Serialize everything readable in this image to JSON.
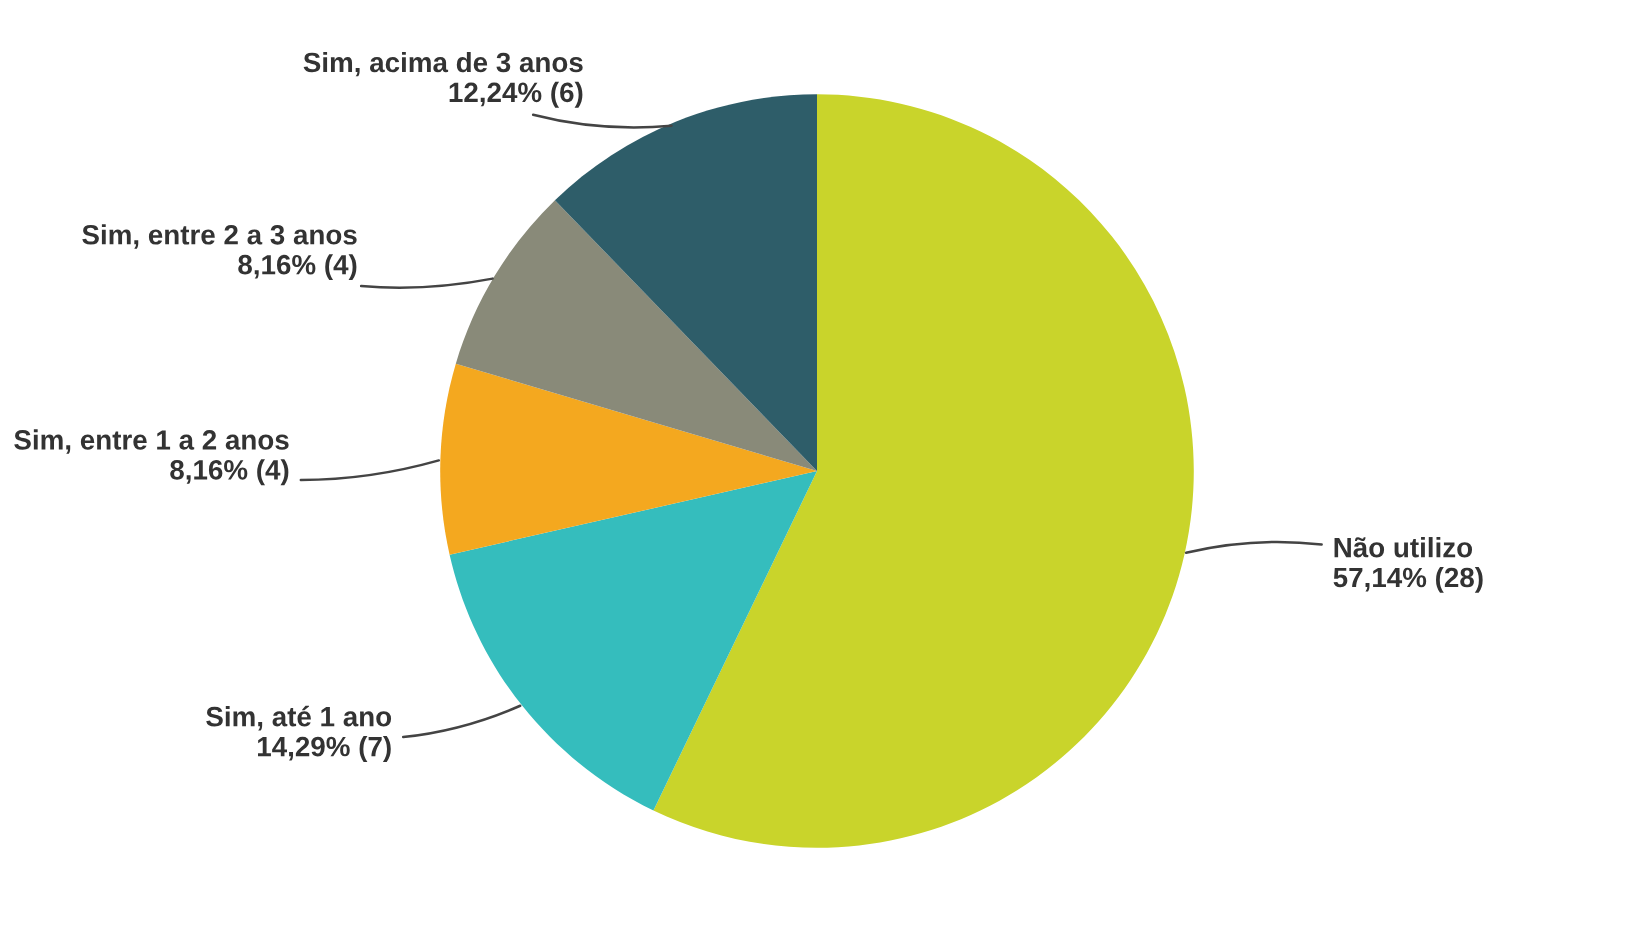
{
  "chart_data": {
    "type": "pie",
    "categories": [
      "Não utilizo",
      "Sim, até 1 ano",
      "Sim, entre 1 a 2 anos",
      "Sim, entre 2 a 3 anos",
      "Sim, acima de 3 anos"
    ],
    "values": [
      57.14,
      14.29,
      8.16,
      8.16,
      12.24
    ],
    "value_labels": [
      "57,14% (28)",
      "14,29% (7)",
      "8,16% (4)",
      "8,16% (4)",
      "12,24% (6)"
    ],
    "colors": [
      "#c9d42b",
      "#35bdbd",
      "#f4a81f",
      "#898a79",
      "#2e5d69"
    ],
    "legend": false
  }
}
